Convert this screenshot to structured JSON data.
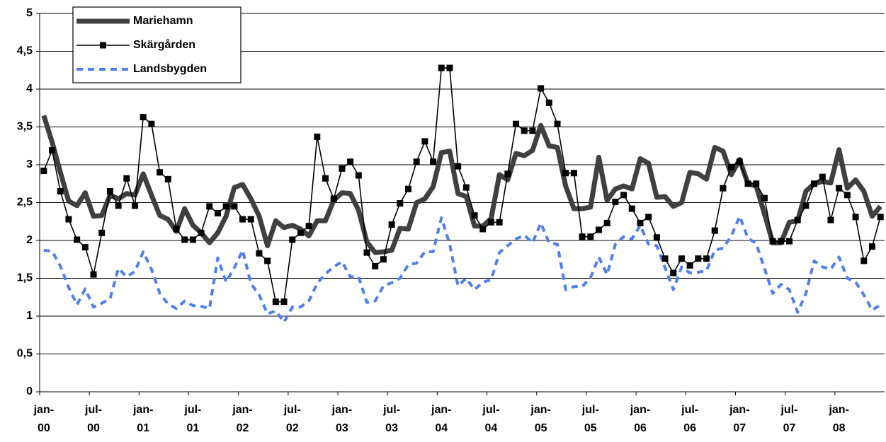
{
  "chart_data": {
    "type": "line",
    "categories": [
      "jan-00",
      null,
      null,
      null,
      null,
      null,
      "jul-00",
      null,
      null,
      null,
      null,
      null,
      "jan-01",
      null,
      null,
      null,
      null,
      null,
      "jul-01",
      null,
      null,
      null,
      null,
      null,
      "jan-02",
      null,
      null,
      null,
      null,
      null,
      "jul-02",
      null,
      null,
      null,
      null,
      null,
      "jan-03",
      null,
      null,
      null,
      null,
      null,
      "jul-03",
      null,
      null,
      null,
      null,
      null,
      "jan-04",
      null,
      null,
      null,
      null,
      null,
      "jul-04",
      null,
      null,
      null,
      null,
      null,
      "jan-05",
      null,
      null,
      null,
      null,
      null,
      "jul-05",
      null,
      null,
      null,
      null,
      null,
      "jan-06",
      null,
      null,
      null,
      null,
      null,
      "jul-06",
      null,
      null,
      null,
      null,
      null,
      "jan-07",
      null,
      null,
      null,
      null,
      null,
      "jul-07",
      null,
      null,
      null,
      null,
      null,
      "jan-08",
      null,
      null,
      null,
      null,
      null
    ],
    "series": [
      {
        "name": "Mariehamn",
        "color": "#404040",
        "values": [
          3.65,
          3.3,
          2.9,
          2.52,
          2.46,
          2.63,
          2.32,
          2.33,
          2.6,
          2.55,
          2.62,
          2.6,
          2.88,
          2.6,
          2.33,
          2.28,
          2.12,
          2.42,
          2.2,
          2.1,
          1.97,
          2.1,
          2.32,
          2.7,
          2.74,
          2.55,
          2.32,
          1.93,
          2.26,
          2.17,
          2.2,
          2.15,
          2.06,
          2.26,
          2.26,
          2.53,
          2.63,
          2.62,
          2.4,
          1.98,
          1.84,
          1.85,
          1.87,
          2.16,
          2.15,
          2.5,
          2.55,
          2.71,
          3.16,
          3.18,
          2.62,
          2.58,
          2.19,
          2.19,
          2.29,
          2.87,
          2.8,
          3.15,
          3.12,
          3.19,
          3.52,
          3.25,
          3.23,
          2.72,
          2.42,
          2.42,
          2.44,
          3.1,
          2.53,
          2.68,
          2.72,
          2.68,
          3.08,
          3.02,
          2.57,
          2.58,
          2.45,
          2.5,
          2.9,
          2.88,
          2.81,
          3.23,
          3.18,
          2.87,
          3.07,
          2.75,
          2.72,
          2.35,
          1.97,
          1.97,
          2.24,
          2.26,
          2.65,
          2.75,
          2.78,
          2.76,
          3.2,
          2.69,
          2.8,
          2.65,
          2.32,
          2.45
        ]
      },
      {
        "name": "Skärgården",
        "color": "#000000",
        "values": [
          2.92,
          3.19,
          2.65,
          2.28,
          2.01,
          1.91,
          1.55,
          2.1,
          2.65,
          2.46,
          2.82,
          2.46,
          3.63,
          3.54,
          2.9,
          2.81,
          2.15,
          2.01,
          2.01,
          2.1,
          2.45,
          2.36,
          2.45,
          2.45,
          2.28,
          2.28,
          1.83,
          1.73,
          1.19,
          1.19,
          2.01,
          2.1,
          2.19,
          3.37,
          2.82,
          2.55,
          2.95,
          3.04,
          2.86,
          1.84,
          1.66,
          1.75,
          2.21,
          2.49,
          2.68,
          3.04,
          3.31,
          3.04,
          4.28,
          4.28,
          2.98,
          2.7,
          2.33,
          2.15,
          2.24,
          2.24,
          2.88,
          3.54,
          3.45,
          3.45,
          4.01,
          3.82,
          3.54,
          2.89,
          2.89,
          2.05,
          2.05,
          2.14,
          2.23,
          2.51,
          2.6,
          2.42,
          2.23,
          2.31,
          2.04,
          1.76,
          1.57,
          1.76,
          1.67,
          1.76,
          1.76,
          2.13,
          2.69,
          2.97,
          3.04,
          2.75,
          2.75,
          2.56,
          1.99,
          1.99,
          1.99,
          2.27,
          2.46,
          2.75,
          2.84,
          2.27,
          2.69,
          2.6,
          2.31,
          1.73,
          1.92,
          2.31
        ]
      },
      {
        "name": "Landsbygden",
        "color": "#4f7ff0",
        "values": [
          1.87,
          1.86,
          1.66,
          1.38,
          1.15,
          1.36,
          1.12,
          1.17,
          1.23,
          1.63,
          1.52,
          1.59,
          1.85,
          1.62,
          1.3,
          1.16,
          1.1,
          1.2,
          1.14,
          1.13,
          1.1,
          1.77,
          1.45,
          1.64,
          1.87,
          1.43,
          1.28,
          1.03,
          1.07,
          0.92,
          1.12,
          1.12,
          1.2,
          1.43,
          1.56,
          1.65,
          1.72,
          1.52,
          1.52,
          1.18,
          1.2,
          1.4,
          1.44,
          1.5,
          1.68,
          1.7,
          1.85,
          1.85,
          2.3,
          1.95,
          1.4,
          1.5,
          1.35,
          1.45,
          1.48,
          1.84,
          1.93,
          2.02,
          2.07,
          1.97,
          2.23,
          1.97,
          1.95,
          1.35,
          1.39,
          1.39,
          1.51,
          1.78,
          1.55,
          1.95,
          2.05,
          2.02,
          2.2,
          1.95,
          1.93,
          1.64,
          1.35,
          1.65,
          1.57,
          1.58,
          1.6,
          1.87,
          1.9,
          2.06,
          2.32,
          2.03,
          1.96,
          1.63,
          1.3,
          1.42,
          1.35,
          1.05,
          1.3,
          1.73,
          1.65,
          1.62,
          1.78,
          1.5,
          1.45,
          1.28,
          1.08,
          1.15
        ]
      }
    ],
    "ylim": [
      0,
      5
    ],
    "yticks": [
      0,
      {
        "value": 0.5,
        "label": "0,5"
      },
      1,
      {
        "value": 1.5,
        "label": "1,5"
      },
      2,
      {
        "value": 2.5,
        "label": "2,5"
      },
      3,
      {
        "value": 3.5,
        "label": "3,5"
      },
      4,
      {
        "value": 4.5,
        "label": "4,5"
      },
      5
    ],
    "grid": true,
    "legend": "top-left"
  }
}
